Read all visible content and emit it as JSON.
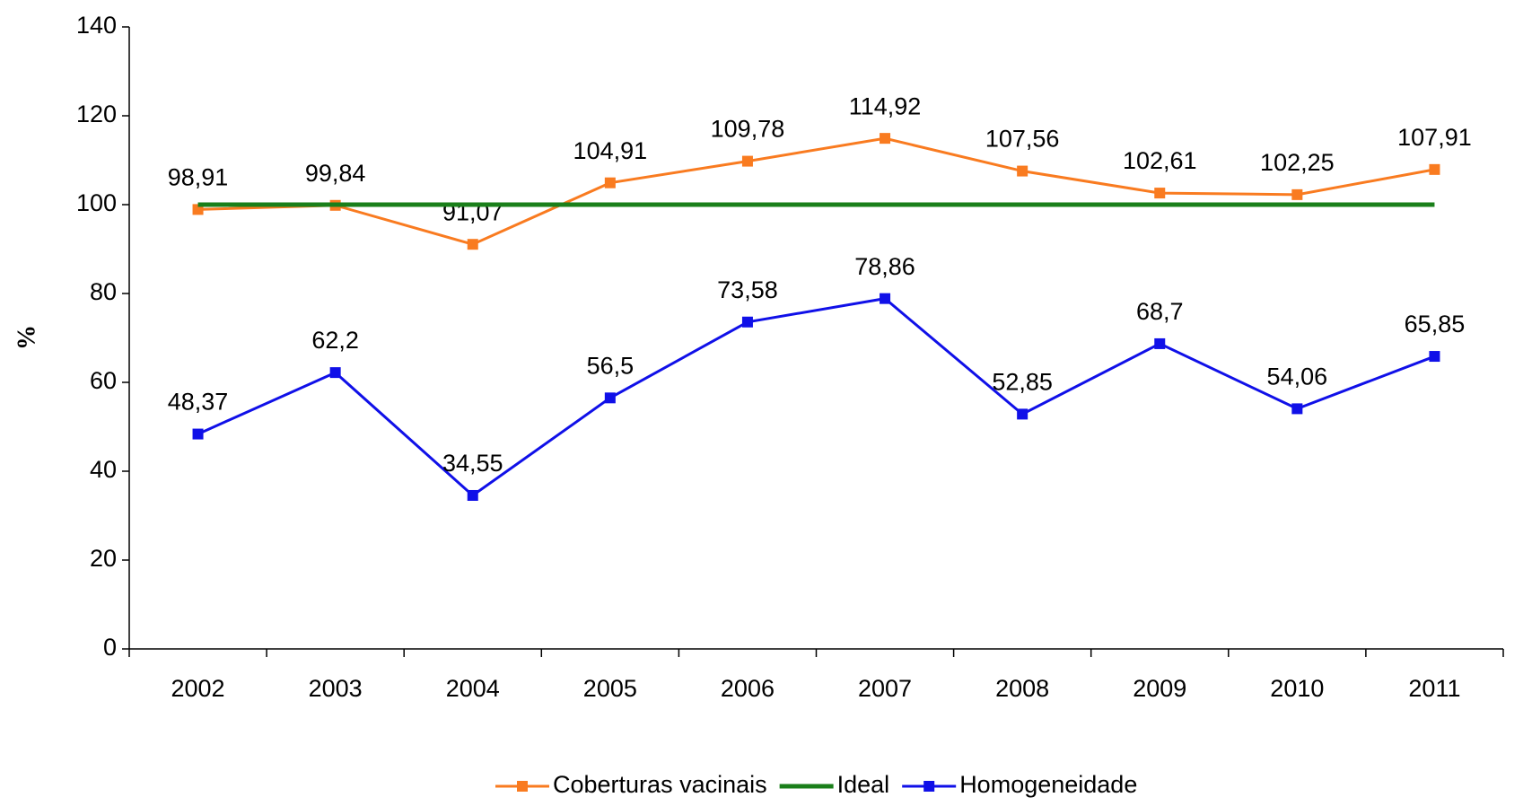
{
  "chart_data": {
    "type": "line",
    "categories": [
      "2002",
      "2003",
      "2004",
      "2005",
      "2006",
      "2007",
      "2008",
      "2009",
      "2010",
      "2011"
    ],
    "y_label": "%",
    "series": [
      {
        "name": "Coberturas vacinais",
        "color": "#f97b20",
        "marker": "square",
        "values": [
          98.91,
          99.84,
          91.07,
          104.91,
          109.78,
          114.92,
          107.56,
          102.61,
          102.25,
          107.91
        ],
        "value_labels": [
          "98,91",
          "99,84",
          "91,07",
          "104,91",
          "109,78",
          "114,92",
          "107,56",
          "102,61",
          "102,25",
          "107,91"
        ]
      },
      {
        "name": "Ideal",
        "color": "#1a7f1a",
        "marker": "none",
        "values": [
          100,
          100,
          100,
          100,
          100,
          100,
          100,
          100,
          100,
          100
        ]
      },
      {
        "name": "Homogeneidade",
        "color": "#1010e8",
        "marker": "square",
        "values": [
          48.37,
          62.2,
          34.55,
          56.5,
          73.58,
          78.86,
          52.85,
          68.7,
          54.06,
          65.85
        ],
        "value_labels": [
          "48,37",
          "62,2",
          "34,55",
          "56,5",
          "73,58",
          "78,86",
          "52,85",
          "68,7",
          "54,06",
          "65,85"
        ]
      }
    ],
    "ylim": [
      0,
      140
    ],
    "yticks": [
      0,
      20,
      40,
      60,
      80,
      100,
      120,
      140
    ],
    "grid": false,
    "legend": "bottom"
  }
}
